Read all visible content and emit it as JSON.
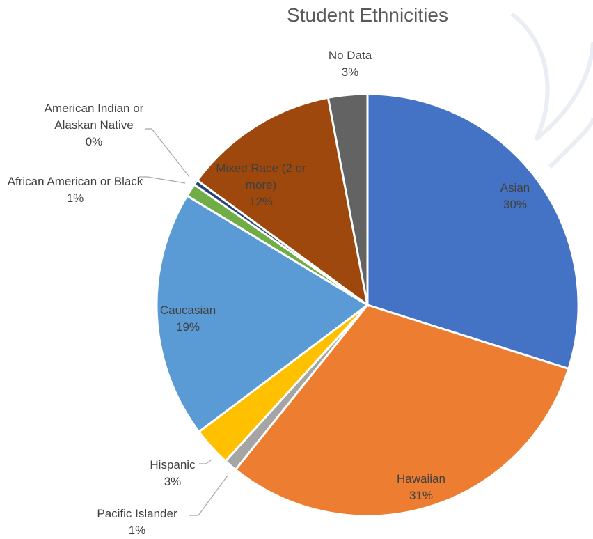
{
  "chart_data": {
    "type": "pie",
    "title": "Student Ethnicities",
    "categories": [
      "Asian",
      "Hawaiian",
      "Pacific Islander",
      "Hispanic",
      "Caucasian",
      "African American or Black",
      "American Indian or Alaskan Native",
      "Mixed Race (2 or more)",
      "No Data"
    ],
    "values": [
      30,
      31,
      1,
      3,
      19,
      1,
      0.4,
      12,
      3
    ],
    "value_labels": [
      "30%",
      "31%",
      "1%",
      "3%",
      "19%",
      "1%",
      "0%",
      "12%",
      "3%"
    ],
    "colors": [
      "#4472c4",
      "#ed7d31",
      "#a5a5a5",
      "#ffc000",
      "#5b9bd5",
      "#70ad47",
      "#264478",
      "#9e480e",
      "#636363"
    ]
  }
}
